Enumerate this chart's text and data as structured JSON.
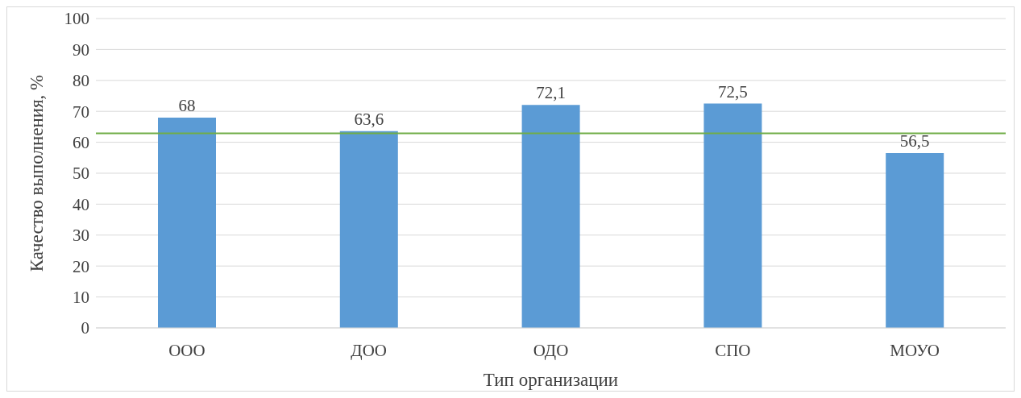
{
  "chart_data": {
    "type": "bar",
    "xlabel": "Тип организации",
    "ylabel": "Качество выполнения, %",
    "categories": [
      "ООО",
      "ДОО",
      "ОДО",
      "СПО",
      "МОУО"
    ],
    "values": [
      68,
      63.6,
      72.1,
      72.5,
      56.5
    ],
    "value_labels": [
      "68",
      "63,6",
      "72,1",
      "72,5",
      "56,5"
    ],
    "color": "#5b9bd5",
    "ylim": [
      0,
      100
    ],
    "yticks": [
      0,
      10,
      20,
      30,
      40,
      50,
      60,
      70,
      80,
      90,
      100
    ],
    "grid": "y",
    "ref_lines": [
      {
        "axis": "y",
        "value": 62.9,
        "color": "#70ad47"
      }
    ]
  }
}
